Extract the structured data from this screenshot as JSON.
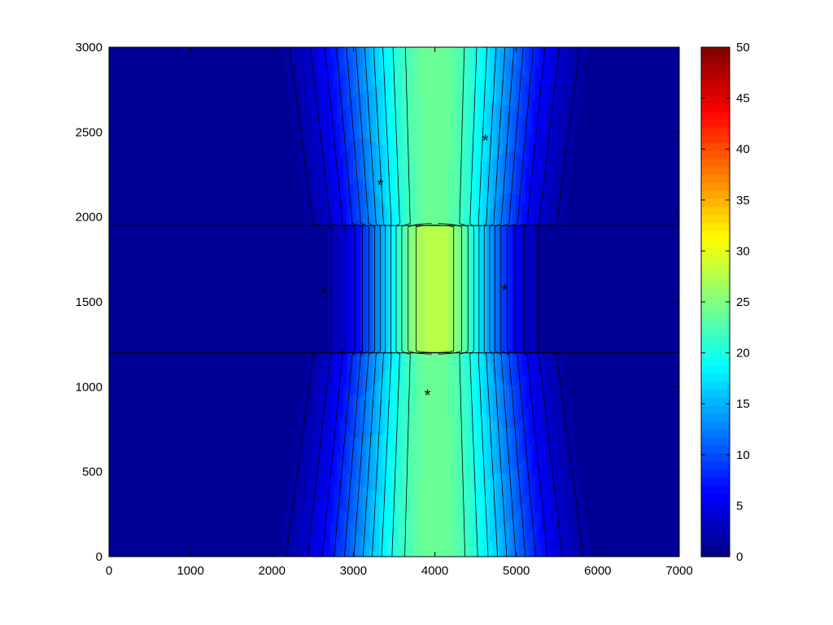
{
  "chart_data": {
    "type": "heatmap",
    "subtype": "filled-contour",
    "title": "",
    "xlabel": "",
    "ylabel": "",
    "xlim": [
      0,
      7000
    ],
    "ylim": [
      0,
      3000
    ],
    "x_ticks": [
      0,
      1000,
      2000,
      3000,
      4000,
      5000,
      6000,
      7000
    ],
    "y_ticks": [
      0,
      500,
      1000,
      1500,
      2000,
      2500,
      3000
    ],
    "colorbar": {
      "colormap": "jet",
      "clim": [
        0,
        50
      ],
      "ticks": [
        0,
        5,
        10,
        15,
        20,
        25,
        30,
        35,
        40,
        45,
        50
      ]
    },
    "layer_boundaries_y": [
      1950,
      1200
    ],
    "field_model": {
      "description": "approximate value field read from contours",
      "peak_x": 4000,
      "middle_band_peak": 28,
      "outer_peak": 24,
      "edge_value": 1
    },
    "markers": {
      "symbol": "*",
      "points": [
        {
          "x": 2640,
          "y": 1560
        },
        {
          "x": 3330,
          "y": 2200
        },
        {
          "x": 4620,
          "y": 2460
        },
        {
          "x": 4860,
          "y": 1580
        },
        {
          "x": 3910,
          "y": 960
        }
      ]
    },
    "grid": false,
    "legend": "none"
  }
}
